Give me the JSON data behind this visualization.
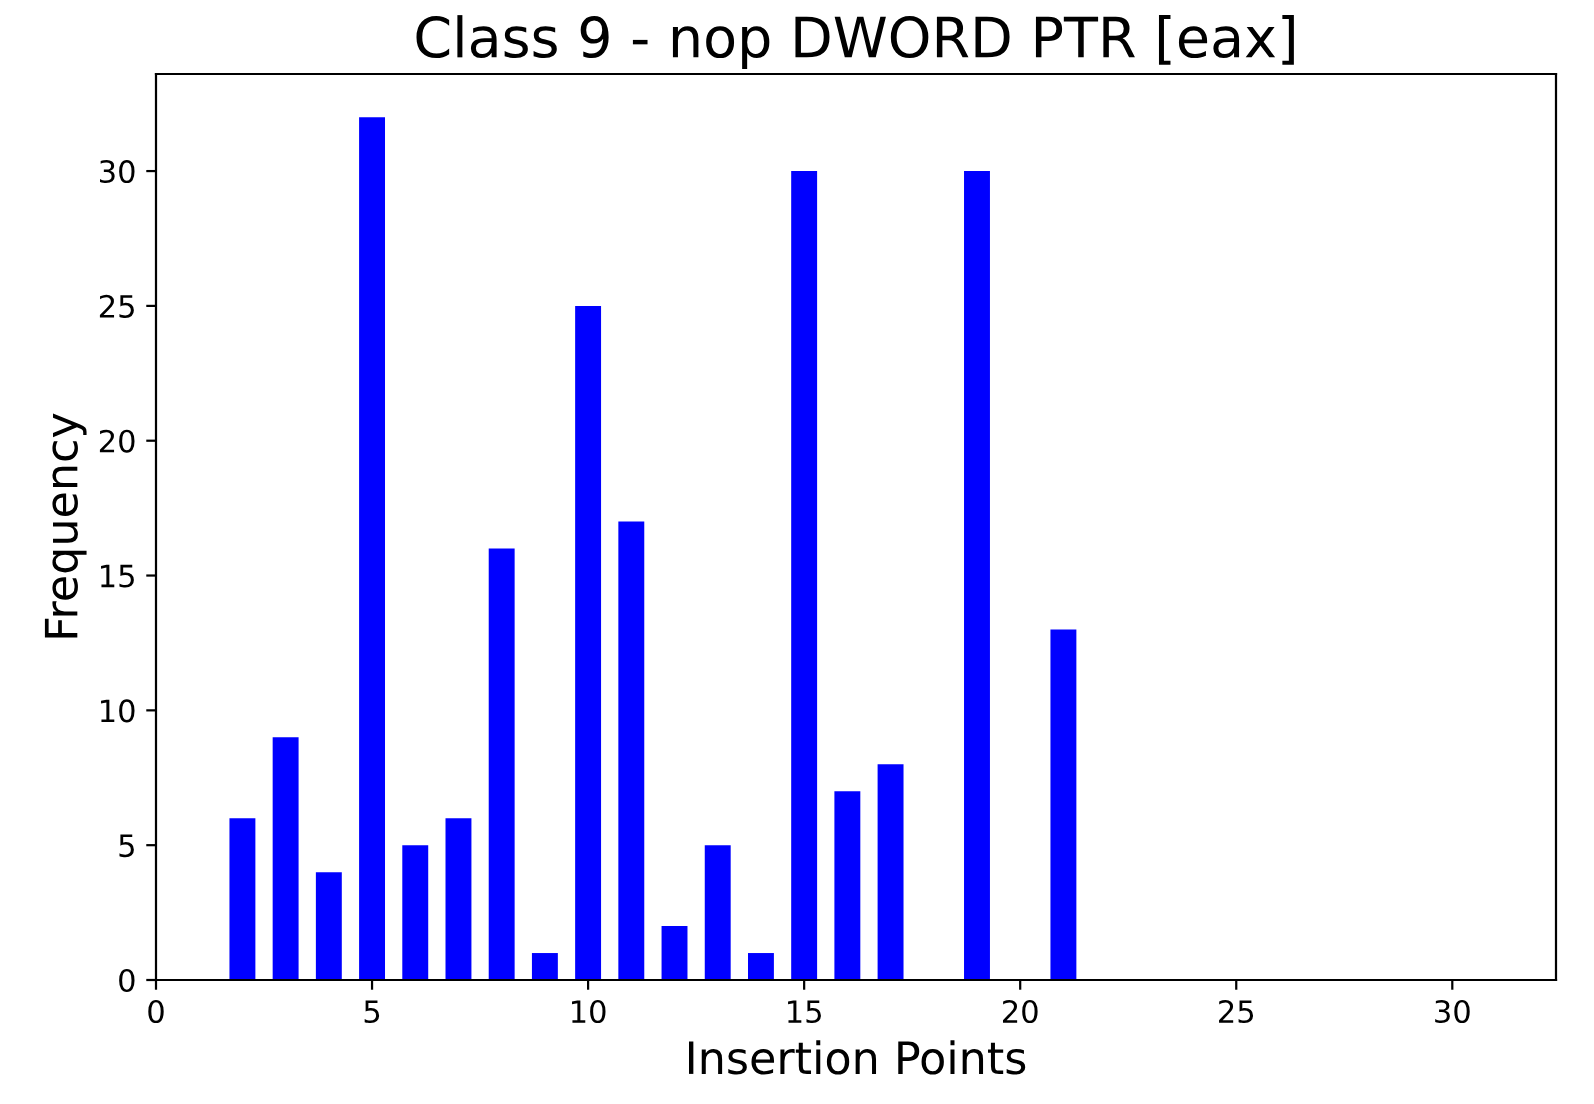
{
  "chart_data": {
    "type": "bar",
    "title": "Class 9 - nop DWORD PTR [eax]",
    "xlabel": "Insertion Points",
    "ylabel": "Frequency",
    "x": [
      2,
      3,
      4,
      5,
      6,
      7,
      8,
      9,
      10,
      11,
      12,
      13,
      14,
      15,
      16,
      17,
      19,
      21
    ],
    "values": [
      6,
      9,
      4,
      32,
      5,
      6,
      16,
      1,
      25,
      17,
      2,
      5,
      1,
      30,
      7,
      8,
      30,
      13
    ],
    "color": "#0000ff",
    "xlim": [
      0,
      32.4
    ],
    "ylim": [
      0,
      33.6
    ],
    "xticks": [
      0,
      5,
      10,
      15,
      20,
      25,
      30
    ],
    "yticks": [
      0,
      5,
      10,
      15,
      20,
      25,
      30
    ],
    "grid": false
  }
}
